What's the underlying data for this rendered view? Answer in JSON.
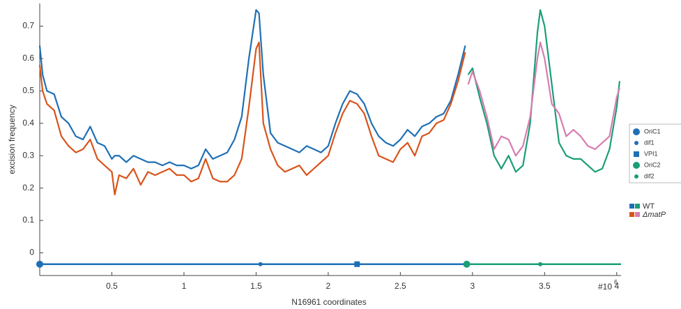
{
  "chart_data": {
    "type": "line",
    "xlabel": "N16961 coordinates",
    "ylabel": "excision frequency",
    "x_multiplier": {
      "base": "#10",
      "exponent": "6"
    },
    "xlim": [
      0,
      4.03
    ],
    "ylim": [
      -0.07,
      0.77
    ],
    "xticks": [
      0.5,
      1,
      1.5,
      2,
      2.5,
      3,
      3.5,
      4
    ],
    "yticks": [
      0,
      0.1,
      0.2,
      0.3,
      0.4,
      0.5,
      0.6,
      0.7
    ],
    "grid": false,
    "series": [
      {
        "name": "WT",
        "segments": [
          {
            "color": "#1f6fb5",
            "x": [
              0,
              0.02,
              0.05,
              0.1,
              0.15,
              0.2,
              0.25,
              0.3,
              0.35,
              0.4,
              0.45,
              0.5,
              0.52,
              0.55,
              0.6,
              0.65,
              0.7,
              0.75,
              0.8,
              0.85,
              0.9,
              0.95,
              1.0,
              1.05,
              1.1,
              1.15,
              1.2,
              1.25,
              1.3,
              1.35,
              1.4,
              1.45,
              1.5,
              1.52,
              1.55,
              1.6,
              1.65,
              1.7,
              1.75,
              1.8,
              1.85,
              1.9,
              1.95,
              2.0,
              2.05,
              2.1,
              2.15,
              2.2,
              2.25,
              2.3,
              2.35,
              2.4,
              2.45,
              2.5,
              2.55,
              2.6,
              2.65,
              2.7,
              2.75,
              2.8,
              2.85,
              2.9,
              2.95
            ],
            "values": [
              0.64,
              0.55,
              0.5,
              0.49,
              0.42,
              0.4,
              0.36,
              0.35,
              0.39,
              0.34,
              0.33,
              0.29,
              0.3,
              0.3,
              0.28,
              0.3,
              0.29,
              0.28,
              0.28,
              0.27,
              0.28,
              0.27,
              0.27,
              0.26,
              0.27,
              0.32,
              0.29,
              0.3,
              0.31,
              0.35,
              0.42,
              0.6,
              0.75,
              0.74,
              0.55,
              0.37,
              0.34,
              0.33,
              0.32,
              0.31,
              0.33,
              0.32,
              0.31,
              0.33,
              0.4,
              0.46,
              0.5,
              0.49,
              0.46,
              0.4,
              0.36,
              0.34,
              0.33,
              0.35,
              0.38,
              0.36,
              0.39,
              0.4,
              0.42,
              0.43,
              0.47,
              0.55,
              0.64
            ]
          },
          {
            "color": "#1a9e77",
            "x": [
              2.97,
              3.0,
              3.05,
              3.1,
              3.15,
              3.2,
              3.25,
              3.3,
              3.35,
              3.4,
              3.45,
              3.47,
              3.5,
              3.55,
              3.6,
              3.65,
              3.7,
              3.75,
              3.8,
              3.85,
              3.9,
              3.95,
              4.0,
              4.02
            ],
            "values": [
              0.55,
              0.57,
              0.48,
              0.4,
              0.3,
              0.26,
              0.3,
              0.25,
              0.27,
              0.4,
              0.68,
              0.75,
              0.7,
              0.52,
              0.34,
              0.3,
              0.29,
              0.29,
              0.27,
              0.25,
              0.26,
              0.32,
              0.45,
              0.53
            ]
          }
        ]
      },
      {
        "name": "ΔmatP",
        "segments": [
          {
            "color": "#d95319",
            "x": [
              0,
              0.02,
              0.05,
              0.1,
              0.15,
              0.2,
              0.25,
              0.3,
              0.35,
              0.4,
              0.45,
              0.5,
              0.52,
              0.55,
              0.6,
              0.65,
              0.7,
              0.75,
              0.8,
              0.85,
              0.9,
              0.95,
              1.0,
              1.05,
              1.1,
              1.15,
              1.2,
              1.25,
              1.3,
              1.35,
              1.4,
              1.45,
              1.5,
              1.52,
              1.55,
              1.6,
              1.65,
              1.7,
              1.75,
              1.8,
              1.85,
              1.9,
              1.95,
              2.0,
              2.05,
              2.1,
              2.15,
              2.2,
              2.25,
              2.3,
              2.35,
              2.4,
              2.45,
              2.5,
              2.55,
              2.6,
              2.65,
              2.7,
              2.75,
              2.8,
              2.85,
              2.9,
              2.95
            ],
            "values": [
              0.58,
              0.5,
              0.46,
              0.44,
              0.36,
              0.33,
              0.31,
              0.32,
              0.35,
              0.29,
              0.27,
              0.25,
              0.18,
              0.24,
              0.23,
              0.26,
              0.21,
              0.25,
              0.24,
              0.25,
              0.26,
              0.24,
              0.24,
              0.22,
              0.23,
              0.29,
              0.23,
              0.22,
              0.22,
              0.24,
              0.29,
              0.45,
              0.63,
              0.65,
              0.4,
              0.32,
              0.27,
              0.25,
              0.26,
              0.27,
              0.24,
              0.26,
              0.28,
              0.3,
              0.37,
              0.43,
              0.47,
              0.46,
              0.43,
              0.36,
              0.3,
              0.29,
              0.28,
              0.32,
              0.34,
              0.3,
              0.36,
              0.37,
              0.4,
              0.41,
              0.46,
              0.53,
              0.62
            ]
          },
          {
            "color": "#d77cb0",
            "x": [
              2.97,
              3.0,
              3.05,
              3.1,
              3.15,
              3.2,
              3.25,
              3.3,
              3.35,
              3.4,
              3.45,
              3.47,
              3.5,
              3.55,
              3.6,
              3.65,
              3.7,
              3.75,
              3.8,
              3.85,
              3.9,
              3.95,
              4.0,
              4.02
            ],
            "values": [
              0.52,
              0.56,
              0.5,
              0.42,
              0.32,
              0.36,
              0.35,
              0.3,
              0.33,
              0.42,
              0.6,
              0.65,
              0.6,
              0.46,
              0.43,
              0.36,
              0.38,
              0.36,
              0.33,
              0.32,
              0.34,
              0.36,
              0.48,
              0.51
            ]
          }
        ]
      }
    ],
    "map": {
      "y": -0.035,
      "tracks": [
        {
          "color": "#1f6fb5",
          "x": [
            0,
            2.96
          ]
        },
        {
          "color": "#1a9e77",
          "x": [
            2.96,
            4.03
          ]
        }
      ],
      "sites": [
        {
          "name": "OriC1",
          "x": 0,
          "shape": "circle",
          "color": "#1f6fb5"
        },
        {
          "name": "dif1",
          "x": 1.53,
          "shape": "dot",
          "color": "#1f6fb5"
        },
        {
          "name": "VPI1",
          "x": 2.2,
          "shape": "square",
          "color": "#1f6fb5"
        },
        {
          "name": "OriC2",
          "x": 2.96,
          "shape": "circle",
          "color": "#1a9e77"
        },
        {
          "name": "dif2",
          "x": 3.47,
          "shape": "dot",
          "color": "#1a9e77"
        }
      ]
    }
  }
}
